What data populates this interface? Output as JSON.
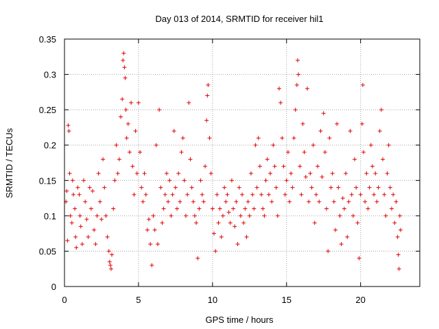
{
  "chart_data": {
    "type": "scatter",
    "title": "Day 013 of 2014, SRMTID for receiver hil1",
    "xlabel": "GPS time / hours",
    "ylabel": "SRMTID / TECUs",
    "xlim": [
      0,
      24
    ],
    "ylim": [
      0,
      0.35
    ],
    "xticks": [
      0,
      5,
      10,
      15,
      20
    ],
    "xtick_labels": [
      "0",
      "5",
      "10",
      "15",
      "20"
    ],
    "yticks": [
      0,
      0.05,
      0.1,
      0.15,
      0.2,
      0.25,
      0.3,
      0.35
    ],
    "ytick_labels": [
      "0",
      "0.05",
      "0.1",
      "0.15",
      "0.2",
      "0.25",
      "0.3",
      "0.35"
    ],
    "grid": true,
    "marker": "+",
    "color": "#e00000",
    "series": [
      {
        "name": "SRMTID",
        "points": [
          [
            0.1,
            0.12
          ],
          [
            0.15,
            0.135
          ],
          [
            0.2,
            0.065
          ],
          [
            0.25,
            0.228
          ],
          [
            0.3,
            0.22
          ],
          [
            0.35,
            0.16
          ],
          [
            0.4,
            0.1
          ],
          [
            0.5,
            0.09
          ],
          [
            0.55,
            0.15
          ],
          [
            0.6,
            0.13
          ],
          [
            0.7,
            0.11
          ],
          [
            0.75,
            0.07
          ],
          [
            0.8,
            0.055
          ],
          [
            0.9,
            0.14
          ],
          [
            1.0,
            0.13
          ],
          [
            1.05,
            0.1
          ],
          [
            1.1,
            0.085
          ],
          [
            1.2,
            0.06
          ],
          [
            1.3,
            0.15
          ],
          [
            1.4,
            0.12
          ],
          [
            1.5,
            0.095
          ],
          [
            1.6,
            0.07
          ],
          [
            1.7,
            0.14
          ],
          [
            1.8,
            0.11
          ],
          [
            1.9,
            0.135
          ],
          [
            2.0,
            0.08
          ],
          [
            2.1,
            0.06
          ],
          [
            2.2,
            0.1
          ],
          [
            2.3,
            0.16
          ],
          [
            2.4,
            0.12
          ],
          [
            2.5,
            0.095
          ],
          [
            2.6,
            0.18
          ],
          [
            2.7,
            0.14
          ],
          [
            2.8,
            0.1
          ],
          [
            2.9,
            0.07
          ],
          [
            3.0,
            0.05
          ],
          [
            3.05,
            0.035
          ],
          [
            3.1,
            0.03
          ],
          [
            3.15,
            0.025
          ],
          [
            3.2,
            0.045
          ],
          [
            3.3,
            0.11
          ],
          [
            3.4,
            0.15
          ],
          [
            3.5,
            0.2
          ],
          [
            3.6,
            0.16
          ],
          [
            3.7,
            0.18
          ],
          [
            3.8,
            0.24
          ],
          [
            3.9,
            0.265
          ],
          [
            3.95,
            0.32
          ],
          [
            4.0,
            0.33
          ],
          [
            4.05,
            0.31
          ],
          [
            4.1,
            0.295
          ],
          [
            4.15,
            0.25
          ],
          [
            4.2,
            0.21
          ],
          [
            4.3,
            0.23
          ],
          [
            4.4,
            0.19
          ],
          [
            4.5,
            0.26
          ],
          [
            4.6,
            0.17
          ],
          [
            4.7,
            0.13
          ],
          [
            4.8,
            0.22
          ],
          [
            4.9,
            0.16
          ],
          [
            5.0,
            0.26
          ],
          [
            5.1,
            0.19
          ],
          [
            5.2,
            0.14
          ],
          [
            5.3,
            0.12
          ],
          [
            5.4,
            0.16
          ],
          [
            5.5,
            0.13
          ],
          [
            5.6,
            0.08
          ],
          [
            5.7,
            0.095
          ],
          [
            5.8,
            0.06
          ],
          [
            5.9,
            0.03
          ],
          [
            6.0,
            0.1
          ],
          [
            6.1,
            0.08
          ],
          [
            6.2,
            0.2
          ],
          [
            6.3,
            0.06
          ],
          [
            6.4,
            0.25
          ],
          [
            6.5,
            0.14
          ],
          [
            6.6,
            0.09
          ],
          [
            6.7,
            0.11
          ],
          [
            6.8,
            0.13
          ],
          [
            6.9,
            0.16
          ],
          [
            7.0,
            0.12
          ],
          [
            7.1,
            0.15
          ],
          [
            7.2,
            0.1
          ],
          [
            7.3,
            0.13
          ],
          [
            7.4,
            0.22
          ],
          [
            7.5,
            0.14
          ],
          [
            7.6,
            0.11
          ],
          [
            7.7,
            0.16
          ],
          [
            7.8,
            0.12
          ],
          [
            7.9,
            0.19
          ],
          [
            8.0,
            0.21
          ],
          [
            8.1,
            0.15
          ],
          [
            8.2,
            0.1
          ],
          [
            8.3,
            0.13
          ],
          [
            8.4,
            0.26
          ],
          [
            8.5,
            0.18
          ],
          [
            8.6,
            0.14
          ],
          [
            8.7,
            0.12
          ],
          [
            8.8,
            0.1
          ],
          [
            8.9,
            0.09
          ],
          [
            9.0,
            0.04
          ],
          [
            9.1,
            0.11
          ],
          [
            9.2,
            0.15
          ],
          [
            9.3,
            0.13
          ],
          [
            9.4,
            0.12
          ],
          [
            9.5,
            0.17
          ],
          [
            9.6,
            0.235
          ],
          [
            9.65,
            0.27
          ],
          [
            9.7,
            0.285
          ],
          [
            9.8,
            0.21
          ],
          [
            9.9,
            0.16
          ],
          [
            10.0,
            0.11
          ],
          [
            10.1,
            0.075
          ],
          [
            10.2,
            0.05
          ],
          [
            10.3,
            0.13
          ],
          [
            10.4,
            0.09
          ],
          [
            10.5,
            0.11
          ],
          [
            10.6,
            0.07
          ],
          [
            10.7,
            0.1
          ],
          [
            10.8,
            0.14
          ],
          [
            10.9,
            0.12
          ],
          [
            11.0,
            0.13
          ],
          [
            11.1,
            0.105
          ],
          [
            11.2,
            0.09
          ],
          [
            11.3,
            0.15
          ],
          [
            11.4,
            0.11
          ],
          [
            11.5,
            0.085
          ],
          [
            11.6,
            0.12
          ],
          [
            11.7,
            0.06
          ],
          [
            11.8,
            0.14
          ],
          [
            11.9,
            0.1
          ],
          [
            12.0,
            0.13
          ],
          [
            12.1,
            0.09
          ],
          [
            12.2,
            0.11
          ],
          [
            12.3,
            0.07
          ],
          [
            12.4,
            0.12
          ],
          [
            12.5,
            0.1
          ],
          [
            12.6,
            0.16
          ],
          [
            12.7,
            0.13
          ],
          [
            12.8,
            0.11
          ],
          [
            12.9,
            0.2
          ],
          [
            13.0,
            0.14
          ],
          [
            13.1,
            0.21
          ],
          [
            13.2,
            0.17
          ],
          [
            13.3,
            0.13
          ],
          [
            13.4,
            0.11
          ],
          [
            13.5,
            0.1
          ],
          [
            13.6,
            0.15
          ],
          [
            13.7,
            0.18
          ],
          [
            13.8,
            0.13
          ],
          [
            13.9,
            0.16
          ],
          [
            14.0,
            0.12
          ],
          [
            14.1,
            0.2
          ],
          [
            14.2,
            0.17
          ],
          [
            14.3,
            0.14
          ],
          [
            14.4,
            0.1
          ],
          [
            14.5,
            0.28
          ],
          [
            14.6,
            0.26
          ],
          [
            14.7,
            0.21
          ],
          [
            14.8,
            0.17
          ],
          [
            14.9,
            0.13
          ],
          [
            15.0,
            0.15
          ],
          [
            15.1,
            0.19
          ],
          [
            15.2,
            0.12
          ],
          [
            15.3,
            0.16
          ],
          [
            15.4,
            0.14
          ],
          [
            15.5,
            0.21
          ],
          [
            15.6,
            0.25
          ],
          [
            15.7,
            0.285
          ],
          [
            15.75,
            0.32
          ],
          [
            15.8,
            0.3
          ],
          [
            15.9,
            0.17
          ],
          [
            16.0,
            0.13
          ],
          [
            16.1,
            0.23
          ],
          [
            16.2,
            0.19
          ],
          [
            16.3,
            0.155
          ],
          [
            16.4,
            0.28
          ],
          [
            16.5,
            0.12
          ],
          [
            16.6,
            0.16
          ],
          [
            16.7,
            0.14
          ],
          [
            16.8,
            0.2
          ],
          [
            16.9,
            0.09
          ],
          [
            17.0,
            0.13
          ],
          [
            17.1,
            0.17
          ],
          [
            17.2,
            0.12
          ],
          [
            17.3,
            0.22
          ],
          [
            17.4,
            0.155
          ],
          [
            17.5,
            0.245
          ],
          [
            17.6,
            0.19
          ],
          [
            17.7,
            0.11
          ],
          [
            17.8,
            0.05
          ],
          [
            17.9,
            0.21
          ],
          [
            18.0,
            0.14
          ],
          [
            18.1,
            0.16
          ],
          [
            18.2,
            0.12
          ],
          [
            18.3,
            0.08
          ],
          [
            18.4,
            0.23
          ],
          [
            18.5,
            0.14
          ],
          [
            18.6,
            0.1
          ],
          [
            18.7,
            0.06
          ],
          [
            18.8,
            0.125
          ],
          [
            18.9,
            0.11
          ],
          [
            19.0,
            0.16
          ],
          [
            19.1,
            0.07
          ],
          [
            19.2,
            0.12
          ],
          [
            19.3,
            0.22
          ],
          [
            19.4,
            0.13
          ],
          [
            19.5,
            0.1
          ],
          [
            19.6,
            0.18
          ],
          [
            19.7,
            0.14
          ],
          [
            19.8,
            0.09
          ],
          [
            19.9,
            0.04
          ],
          [
            20.0,
            0.13
          ],
          [
            20.1,
            0.23
          ],
          [
            20.15,
            0.285
          ],
          [
            20.2,
            0.19
          ],
          [
            20.3,
            0.12
          ],
          [
            20.4,
            0.16
          ],
          [
            20.5,
            0.11
          ],
          [
            20.6,
            0.14
          ],
          [
            20.7,
            0.2
          ],
          [
            20.8,
            0.17
          ],
          [
            20.9,
            0.13
          ],
          [
            21.0,
            0.16
          ],
          [
            21.1,
            0.12
          ],
          [
            21.2,
            0.14
          ],
          [
            21.3,
            0.22
          ],
          [
            21.4,
            0.25
          ],
          [
            21.5,
            0.18
          ],
          [
            21.6,
            0.13
          ],
          [
            21.7,
            0.1
          ],
          [
            21.8,
            0.16
          ],
          [
            21.9,
            0.2
          ],
          [
            22.0,
            0.14
          ],
          [
            22.1,
            0.11
          ],
          [
            22.2,
            0.13
          ],
          [
            22.3,
            0.09
          ],
          [
            22.4,
            0.12
          ],
          [
            22.5,
            0.07
          ],
          [
            22.55,
            0.045
          ],
          [
            22.6,
            0.025
          ],
          [
            22.65,
            0.1
          ],
          [
            22.7,
            0.08
          ]
        ]
      }
    ]
  }
}
